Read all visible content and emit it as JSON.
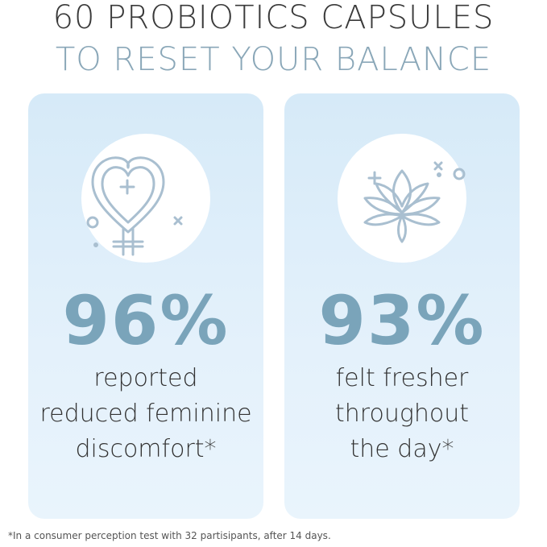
{
  "headline": {
    "line1": "60 PROBIOTICS CAPSULES",
    "line2": "TO RESET YOUR BALANCE"
  },
  "cards": [
    {
      "icon": "female-heart-symbol-icon",
      "stat": "96%",
      "description": [
        "reported",
        "reduced feminine",
        "discomfort*"
      ]
    },
    {
      "icon": "lotus-flower-icon",
      "stat": "93%",
      "description": [
        "felt fresher",
        "throughout",
        "the day*"
      ]
    }
  ],
  "footnote": "*In a consumer perception test with 32 partisipants, after 14 days.",
  "colors": {
    "accent": "#7aa4ba",
    "headline_secondary": "#8aa7b8",
    "card_background": "#d6eaf8",
    "icon_stroke": "#a9bfd0"
  }
}
